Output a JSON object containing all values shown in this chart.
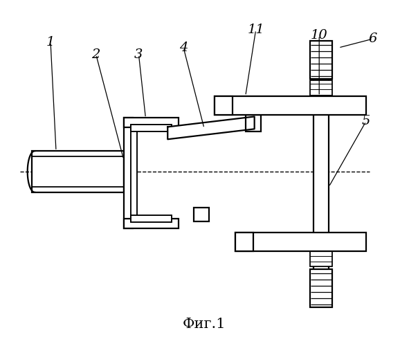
{
  "title": "Фиг.1",
  "bg_color": "#ffffff",
  "line_color": "#000000",
  "lw": 1.6,
  "fig_width": 5.91,
  "fig_height": 5.0,
  "dpi": 100
}
